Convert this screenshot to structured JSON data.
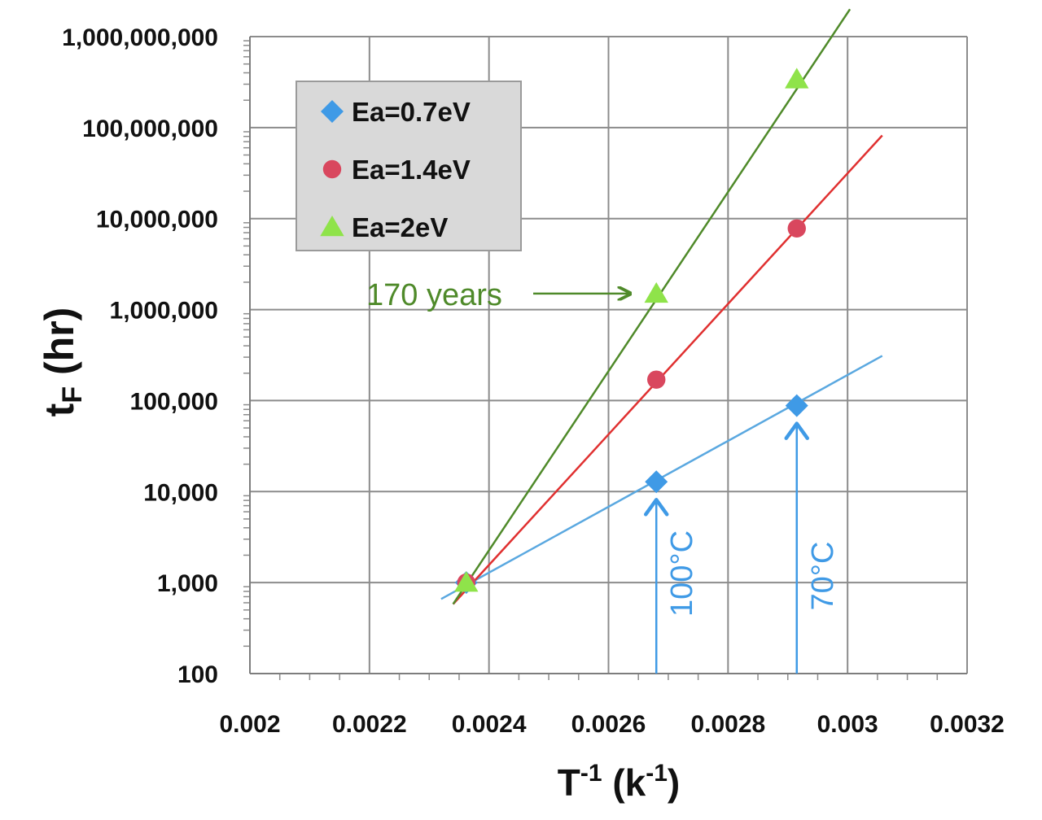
{
  "chart_data": {
    "type": "scatter",
    "xlabel": "T",
    "xlabel_sup": "-1",
    "xlabel_unit_open": " (k",
    "xlabel_unit_sup": "-1",
    "xlabel_unit_close": ")",
    "ylabel": "t",
    "ylabel_sub": "F",
    "ylabel_unit": " (hr)",
    "xlim": [
      0.002,
      0.0032
    ],
    "ylim": [
      100,
      1000000000
    ],
    "y_scale": "log",
    "grid": true,
    "x_ticks": [
      0.002,
      0.0022,
      0.0024,
      0.0026,
      0.0028,
      0.003,
      0.0032
    ],
    "x_tick_labels": [
      "0.002",
      "0.0022",
      "0.0024",
      "0.0026",
      "0.0028",
      "0.003",
      "0.0032"
    ],
    "y_ticks": [
      100,
      1000,
      10000,
      100000,
      1000000,
      10000000,
      100000000,
      1000000000
    ],
    "y_tick_labels": [
      "100",
      "1,000",
      "10,000",
      "100,000",
      "1,000,000",
      "10,000,000",
      "100,000,000",
      "1,000,000,000"
    ],
    "legend_position": "top-left",
    "series": [
      {
        "name": "Ea=0.7eV",
        "marker": "diamond",
        "color": "#3f9ae6",
        "line_color": "#5aa8e0",
        "points": [
          [
            0.002362,
            1000
          ],
          [
            0.00268,
            12800
          ],
          [
            0.002915,
            88000
          ]
        ],
        "fit": [
          [
            0.00232,
            660
          ],
          [
            0.003058,
            310000
          ]
        ]
      },
      {
        "name": "Ea=1.4eV",
        "marker": "circle",
        "color": "#d9475e",
        "line_color": "#e03030",
        "points": [
          [
            0.002362,
            1000
          ],
          [
            0.00268,
            170000
          ],
          [
            0.002915,
            7800000
          ]
        ],
        "fit": [
          [
            0.00234,
            580
          ],
          [
            0.003058,
            82000000
          ]
        ]
      },
      {
        "name": "Ea=2eV",
        "marker": "triangle",
        "color": "#8fe34a",
        "line_color": "#4f8a2a",
        "points": [
          [
            0.002362,
            1000
          ],
          [
            0.00268,
            1500000
          ],
          [
            0.002915,
            340000000
          ]
        ],
        "fit": [
          [
            0.00234,
            580
          ],
          [
            0.003004,
            2000000000
          ]
        ]
      }
    ],
    "annotations": [
      {
        "text": "170 years",
        "color": "#4f8a2a",
        "target": [
          0.00268,
          1500000
        ]
      },
      {
        "text": "100°C",
        "color": "#3f9ae6",
        "x": 0.00268
      },
      {
        "text": "70°C",
        "color": "#3f9ae6",
        "x": 0.002915
      }
    ]
  }
}
